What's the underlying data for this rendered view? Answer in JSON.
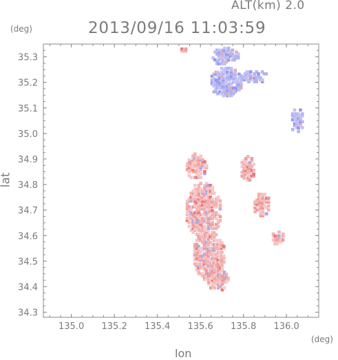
{
  "header": {
    "alt_label": "ALT(km) 2.0",
    "datetime": "2013/09/16 11:03:59"
  },
  "chart_data": {
    "type": "heatmap",
    "title": "2013/09/16 11:03:59",
    "xlabel": "lon",
    "ylabel": "lat",
    "x_unit": "(deg)",
    "y_unit": "(deg)",
    "xlim": [
      134.87,
      136.15
    ],
    "ylim": [
      34.28,
      35.35
    ],
    "x_ticks": [
      135.0,
      135.2,
      135.4,
      135.6,
      135.8,
      136.0
    ],
    "x_tick_labels": [
      "135.0",
      "135.2",
      "135.4",
      "135.6",
      "135.8",
      "136.0"
    ],
    "y_ticks": [
      34.3,
      34.4,
      34.5,
      34.6,
      34.7,
      34.8,
      34.9,
      35.0,
      35.1,
      35.2,
      35.3
    ],
    "y_tick_labels": [
      "34.3",
      "34.4",
      "34.5",
      "34.6",
      "34.7",
      "34.8",
      "34.9",
      "35.0",
      "35.1",
      "35.2",
      "35.3"
    ],
    "grid": false,
    "colors": {
      "positive": "#f2a8a8",
      "negative": "#a9a9ee",
      "axis": "#8a8a8a"
    },
    "regions": [
      {
        "sign": "negative",
        "center": [
          135.715,
          35.3
        ],
        "radius": [
          0.065,
          0.035
        ]
      },
      {
        "sign": "negative",
        "center": [
          135.72,
          35.2
        ],
        "radius": [
          0.075,
          0.06
        ]
      },
      {
        "sign": "negative",
        "center": [
          135.85,
          35.22
        ],
        "radius": [
          0.07,
          0.025
        ]
      },
      {
        "sign": "positive",
        "center": [
          135.58,
          34.87
        ],
        "radius": [
          0.05,
          0.05
        ]
      },
      {
        "sign": "positive",
        "center": [
          135.615,
          34.7
        ],
        "radius": [
          0.085,
          0.11
        ]
      },
      {
        "sign": "positive",
        "center": [
          135.64,
          34.52
        ],
        "radius": [
          0.075,
          0.1
        ]
      },
      {
        "sign": "positive",
        "center": [
          135.68,
          34.43
        ],
        "radius": [
          0.05,
          0.05
        ]
      },
      {
        "sign": "positive",
        "center": [
          135.82,
          34.86
        ],
        "radius": [
          0.035,
          0.05
        ]
      },
      {
        "sign": "positive",
        "center": [
          135.885,
          34.72
        ],
        "radius": [
          0.04,
          0.05
        ]
      },
      {
        "sign": "positive",
        "center": [
          135.96,
          34.59
        ],
        "radius": [
          0.03,
          0.03
        ]
      },
      {
        "sign": "positive",
        "center": [
          135.52,
          35.33
        ],
        "radius": [
          0.015,
          0.015
        ]
      },
      {
        "sign": "negative",
        "center": [
          136.05,
          35.05
        ],
        "radius": [
          0.03,
          0.05
        ]
      }
    ]
  }
}
